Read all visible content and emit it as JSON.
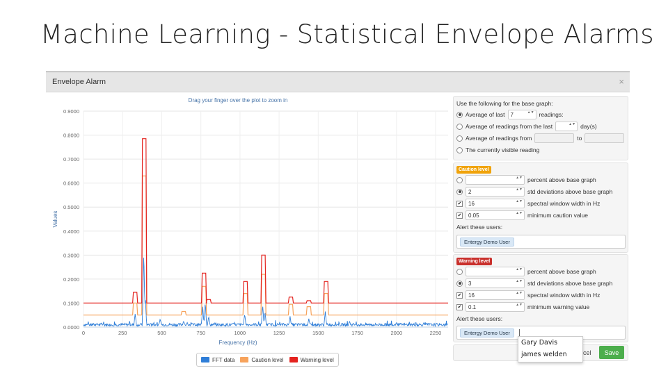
{
  "slide": {
    "title": "Machine Learning -  Statistical Envelope Alarms"
  },
  "modal": {
    "title": "Envelope Alarm",
    "close": "×"
  },
  "chart_data": {
    "type": "line",
    "title": "Drag your finger over the plot to zoom in",
    "xlabel": "Frequency (Hz)",
    "ylabel": "Values",
    "xlim": [
      0,
      2330
    ],
    "ylim": [
      0,
      0.9
    ],
    "x_ticks": [
      0,
      250,
      500,
      750,
      1000,
      1250,
      1500,
      1750,
      2000,
      2250
    ],
    "x_tick_labels": [
      "0",
      "250",
      "500",
      "750",
      "1000",
      "1250",
      "1500",
      "1750",
      "2000",
      "2250"
    ],
    "y_ticks": [
      0,
      0.1,
      0.2,
      0.3,
      0.4,
      0.5,
      0.6,
      0.7,
      0.8,
      0.9
    ],
    "y_tick_labels": [
      "0.0000",
      "0.1000",
      "0.2000",
      "0.3000",
      "0.4000",
      "0.5000",
      "0.6000",
      "0.7000",
      "0.8000",
      "0.9000"
    ],
    "grid": true,
    "legend_position": "bottom-center",
    "series": [
      {
        "name": "FFT data",
        "color": "#2f7ed8",
        "baseline": 0.01,
        "peaks": [
          [
            330,
            0.05
          ],
          [
            385,
            0.32
          ],
          [
            395,
            0.12
          ],
          [
            490,
            0.03
          ],
          [
            640,
            0.02
          ],
          [
            762,
            0.08
          ],
          [
            778,
            0.1
          ],
          [
            800,
            0.04
          ],
          [
            1030,
            0.05
          ],
          [
            1145,
            0.09
          ],
          [
            1160,
            0.06
          ],
          [
            1320,
            0.04
          ],
          [
            1440,
            0.03
          ],
          [
            1545,
            0.06
          ],
          [
            1700,
            0.02
          ],
          [
            2000,
            0.015
          ]
        ]
      },
      {
        "name": "Caution level",
        "color": "#f7a35c",
        "baseline": 0.05,
        "bumps": [
          [
            330,
            0.1,
            16
          ],
          [
            388,
            0.63,
            16
          ],
          [
            640,
            0.065,
            16
          ],
          [
            770,
            0.17,
            16
          ],
          [
            1035,
            0.14,
            16
          ],
          [
            1150,
            0.22,
            16
          ],
          [
            1325,
            0.095,
            16
          ],
          [
            1440,
            0.085,
            16
          ],
          [
            1550,
            0.14,
            16
          ]
        ]
      },
      {
        "name": "Warning level",
        "color": "#e4231f",
        "baseline": 0.1,
        "bumps": [
          [
            330,
            0.145,
            16
          ],
          [
            388,
            0.785,
            16
          ],
          [
            770,
            0.225,
            16
          ],
          [
            800,
            0.115,
            16
          ],
          [
            1035,
            0.19,
            16
          ],
          [
            1150,
            0.3,
            16
          ],
          [
            1325,
            0.125,
            16
          ],
          [
            1440,
            0.11,
            16
          ],
          [
            1550,
            0.19,
            16
          ]
        ]
      }
    ]
  },
  "base_graph": {
    "heading": "Use the following for the base graph:",
    "options": [
      {
        "label_before": "Average of last",
        "value": "7",
        "label_after": "readings:",
        "selected": true
      },
      {
        "label_before": "Average of readings from the last",
        "value": "",
        "label_after": "day(s)",
        "selected": false
      },
      {
        "label_before": "Average of readings from",
        "value": "",
        "to_label": "to",
        "selected": false
      },
      {
        "label_before": "The currently visible reading",
        "selected": false
      }
    ]
  },
  "caution": {
    "badge": "Caution level",
    "rows": [
      {
        "value": "",
        "label": "percent above base graph",
        "type": "radio",
        "checked": false
      },
      {
        "value": "2",
        "label": "std deviations above base graph",
        "type": "radio",
        "checked": true
      },
      {
        "value": "16",
        "label": "spectral window width in Hz",
        "type": "check",
        "checked": true
      },
      {
        "value": "0.05",
        "label": "minimum caution value",
        "type": "check",
        "checked": true
      }
    ],
    "alert_label": "Alert these users:",
    "users": [
      "Entergy Demo User"
    ]
  },
  "warning": {
    "badge": "Warning level",
    "rows": [
      {
        "value": "",
        "label": "percent above base graph",
        "type": "radio",
        "checked": false
      },
      {
        "value": "3",
        "label": "std deviations above base graph",
        "type": "radio",
        "checked": true
      },
      {
        "value": "16",
        "label": "spectral window width in Hz",
        "type": "check",
        "checked": true
      },
      {
        "value": "0.1",
        "label": "minimum warning value",
        "type": "check",
        "checked": true
      }
    ],
    "alert_label": "Alert these users:",
    "users": [
      "Entergy Demo User"
    ]
  },
  "user_suggestions": [
    "Gary Davis",
    "james welden"
  ],
  "footer": {
    "cancel_fragment": "ncel",
    "save": "Save"
  },
  "glyphs": {
    "check": "✔",
    "spin": "▲▼"
  }
}
